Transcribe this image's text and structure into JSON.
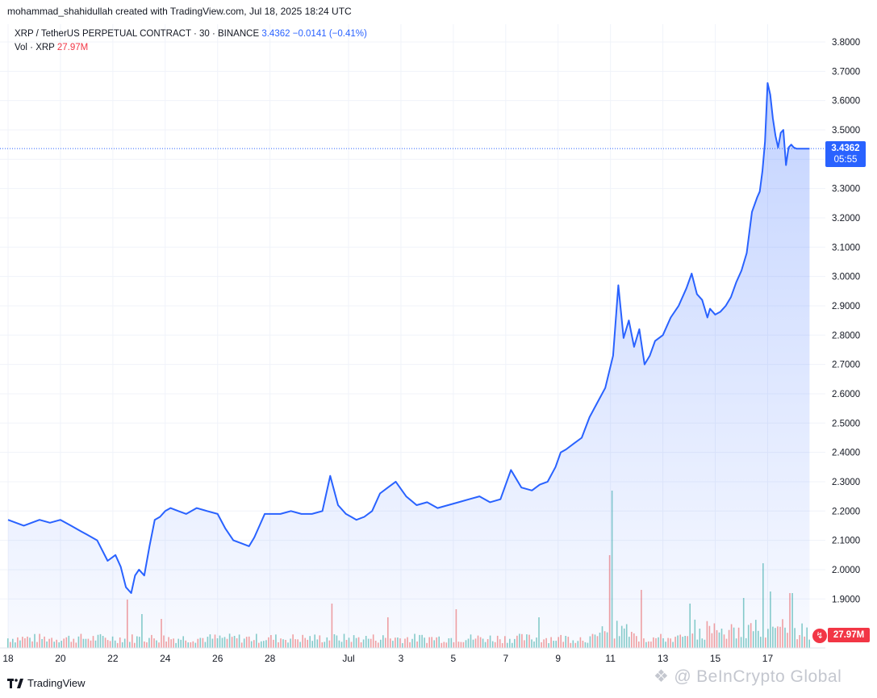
{
  "attribution": "mohammad_shahidullah created with TradingView.com, Jul 18, 2025 18:24 UTC",
  "legend": {
    "symbol": "XRP / TetherUS PERPETUAL CONTRACT · 30 · BINANCE",
    "last": "3.4362",
    "change": "−0.0141 (−0.41%)",
    "vol_label": "Vol · XRP",
    "vol_value": "27.97M"
  },
  "price_tag": {
    "price": "3.4362",
    "countdown": "05:55"
  },
  "vol_tag": "27.97M",
  "footer": {
    "brand": "TradingView",
    "watermark": "BeInCrypto Global"
  },
  "colors": {
    "line": "#2962ff",
    "fill": "#2962ff",
    "vol_up": "#26a69a",
    "vol_down": "#ef5350",
    "grid": "#f0f3fa"
  },
  "chart_data": {
    "type": "area",
    "title": "XRP / TetherUS PERPETUAL CONTRACT · 30 · BINANCE",
    "ylim": [
      1.8,
      3.85
    ],
    "y_ticks": [
      "3.8000",
      "3.7000",
      "3.6000",
      "3.5000",
      "3.4000",
      "3.3000",
      "3.2000",
      "3.1000",
      "3.0000",
      "2.9000",
      "2.8000",
      "2.7000",
      "2.6000",
      "2.5000",
      "2.4000",
      "2.3000",
      "2.2000",
      "2.1000",
      "2.0000",
      "1.9000"
    ],
    "x_ticks": [
      "18",
      "20",
      "22",
      "24",
      "26",
      "28",
      "Jul",
      "3",
      "5",
      "7",
      "9",
      "11",
      "13",
      "15",
      "17"
    ],
    "x_units": "days since Jun 18, 2025 00:00 UTC",
    "last_price": 3.4362,
    "series": [
      {
        "name": "XRP",
        "x": [
          0,
          0.3,
          0.6,
          0.9,
          1.2,
          1.6,
          2.0,
          2.4,
          2.8,
          3.0,
          3.4,
          3.8,
          4.1,
          4.3,
          4.5,
          4.7,
          4.85,
          5.0,
          5.2,
          5.4,
          5.6,
          5.8,
          6.0,
          6.2,
          6.5,
          6.8,
          7.2,
          7.6,
          8.0,
          8.3,
          8.6,
          8.9,
          9.2,
          9.4,
          9.6,
          9.8,
          10.0,
          10.4,
          10.8,
          11.2,
          11.6,
          12.0,
          12.3,
          12.6,
          12.9,
          13.1,
          13.3,
          13.6,
          13.9,
          14.2,
          14.5,
          14.8,
          15.2,
          15.6,
          16.0,
          16.4,
          16.8,
          17.2,
          17.6,
          18.0,
          18.4,
          18.8,
          19.2,
          19.6,
          20.0,
          20.3,
          20.6,
          20.9,
          21.1,
          21.3,
          21.6,
          21.9,
          22.2,
          22.5,
          22.8,
          23.1,
          23.3,
          23.5,
          23.7,
          23.9,
          24.1,
          24.3,
          24.5,
          24.7,
          25.0,
          25.3,
          25.6,
          25.9,
          26.1,
          26.3,
          26.5,
          26.7,
          26.8,
          27.0,
          27.2,
          27.4,
          27.6,
          27.8,
          28.0,
          28.2,
          28.4,
          28.6,
          28.7,
          28.8,
          28.9,
          29.0,
          29.1,
          29.2,
          29.3,
          29.4,
          29.5,
          29.6,
          29.7,
          29.8,
          29.9,
          30.0,
          30.1,
          30.2,
          30.4,
          30.6
        ],
        "y": [
          2.17,
          2.16,
          2.15,
          2.16,
          2.17,
          2.16,
          2.17,
          2.15,
          2.13,
          2.12,
          2.1,
          2.03,
          2.05,
          2.01,
          1.94,
          1.92,
          1.98,
          2.0,
          1.98,
          2.08,
          2.17,
          2.18,
          2.2,
          2.21,
          2.2,
          2.19,
          2.21,
          2.2,
          2.19,
          2.14,
          2.1,
          2.09,
          2.08,
          2.11,
          2.15,
          2.19,
          2.19,
          2.19,
          2.2,
          2.19,
          2.19,
          2.2,
          2.32,
          2.22,
          2.19,
          2.18,
          2.17,
          2.18,
          2.2,
          2.26,
          2.28,
          2.3,
          2.25,
          2.22,
          2.23,
          2.21,
          2.22,
          2.23,
          2.24,
          2.25,
          2.23,
          2.24,
          2.34,
          2.28,
          2.27,
          2.29,
          2.3,
          2.35,
          2.4,
          2.41,
          2.43,
          2.45,
          2.52,
          2.57,
          2.62,
          2.73,
          2.97,
          2.79,
          2.85,
          2.76,
          2.82,
          2.7,
          2.73,
          2.78,
          2.8,
          2.86,
          2.9,
          2.96,
          3.01,
          2.94,
          2.92,
          2.86,
          2.89,
          2.87,
          2.88,
          2.9,
          2.93,
          2.98,
          3.02,
          3.08,
          3.22,
          3.27,
          3.29,
          3.36,
          3.46,
          3.66,
          3.62,
          3.54,
          3.48,
          3.44,
          3.49,
          3.5,
          3.38,
          3.44,
          3.45,
          3.44,
          3.4362,
          3.4362,
          3.4362,
          3.4362
        ]
      }
    ],
    "volume": {
      "name": "Vol · XRP",
      "last": "27.97M",
      "spikes": [
        {
          "x": 4.6,
          "v": 60
        },
        {
          "x": 5.1,
          "v": 42
        },
        {
          "x": 5.9,
          "v": 36
        },
        {
          "x": 12.4,
          "v": 55
        },
        {
          "x": 14.5,
          "v": 38
        },
        {
          "x": 17.1,
          "v": 48
        },
        {
          "x": 20.3,
          "v": 38
        },
        {
          "x": 23.1,
          "v": 195
        },
        {
          "x": 23.0,
          "v": 115
        },
        {
          "x": 24.2,
          "v": 72
        },
        {
          "x": 26.0,
          "v": 55
        },
        {
          "x": 28.1,
          "v": 62
        },
        {
          "x": 28.8,
          "v": 105
        },
        {
          "x": 29.1,
          "v": 70
        },
        {
          "x": 29.9,
          "v": 68
        }
      ]
    }
  }
}
